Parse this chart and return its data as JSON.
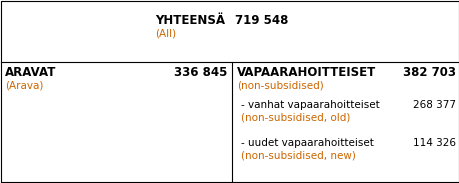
{
  "bg_color": "#ffffff",
  "border_color": "#000000",
  "title_label": "YHTEENSÄ",
  "title_value": "719 548",
  "title_sublabel": "(All)",
  "left_main_label": "ARAVAT",
  "left_main_sublabel": "(Arava)",
  "left_main_value": "336 845",
  "right_main_label": "VAPAARAHOITTEISET",
  "right_main_sublabel": "(non-subsidised)",
  "right_main_value": "382 703",
  "right_sub1_label": "- vanhat vapaarahoitteiset",
  "right_sub1_sublabel": "(non-subsidised, old)",
  "right_sub1_value": "268 377",
  "right_sub2_label": "- uudet vapaarahoitteiset",
  "right_sub2_sublabel": "(non-subsidised, new)",
  "right_sub2_value": "114 326",
  "black": "#000000",
  "orange": "#cc6600",
  "font_size_main": 8.5,
  "font_size_sub": 7.5,
  "fig_width": 4.6,
  "fig_height": 1.83,
  "dpi": 100
}
